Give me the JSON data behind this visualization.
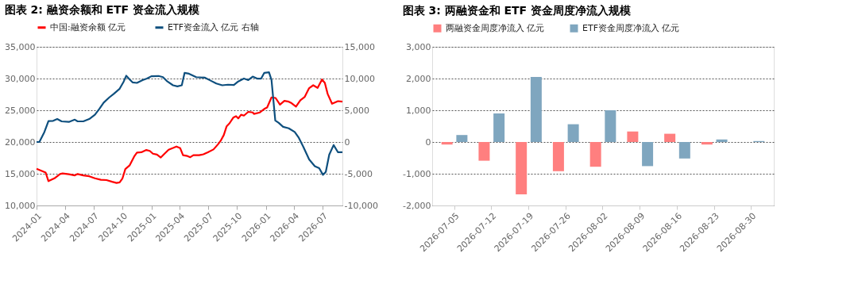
{
  "chart_data": [
    {
      "type": "line",
      "title": "图表 2: 融资余额和 ETF 资金流入规模",
      "legend": "top",
      "grid": "y",
      "line_style": "solid",
      "marker": "none",
      "xlim": [
        "2024-01-01",
        "2026-09-02"
      ],
      "xticks": [
        "2024-01",
        "2024-04",
        "2024-07",
        "2024-10",
        "2025-01",
        "2025-04",
        "2025-07",
        "2025-10",
        "2026-01",
        "2026-04",
        "2026-07"
      ],
      "ylim": [
        10000,
        35000
      ],
      "yticks": [
        {
          "value": 10000,
          "label": "10,000"
        },
        {
          "value": 15000,
          "label": "15,000"
        },
        {
          "value": 20000,
          "label": "20,000"
        },
        {
          "value": 25000,
          "label": "25,000"
        },
        {
          "value": 30000,
          "label": "30,000"
        },
        {
          "value": 35000,
          "label": "35,000"
        }
      ],
      "y2lim": [
        -10000,
        15000
      ],
      "y2ticks": [
        {
          "value": -10000,
          "label": "-10,000"
        },
        {
          "value": -5000,
          "label": "-5,000"
        },
        {
          "value": 0,
          "label": "0"
        },
        {
          "value": 5000,
          "label": "5,000"
        },
        {
          "value": 10000,
          "label": "10,000"
        },
        {
          "value": 15000,
          "label": "15,000"
        }
      ],
      "series": [
        {
          "name": "中国:融资余额 亿元",
          "color": "#ff0000",
          "x": [
            "2024-01-01",
            "2024-01-30",
            "2024-02-08",
            "2024-02-27",
            "2024-03-16",
            "2024-03-24",
            "2024-04-13",
            "2024-05-02",
            "2024-05-11",
            "2024-05-29",
            "2024-06-17",
            "2024-07-05",
            "2024-07-24",
            "2024-08-11",
            "2024-08-29",
            "2024-09-12",
            "2024-09-22",
            "2024-10-01",
            "2024-10-10",
            "2024-10-24",
            "2024-11-07",
            "2024-11-16",
            "2024-11-30",
            "2024-12-16",
            "2024-12-27",
            "2025-01-06",
            "2025-01-19",
            "2025-01-31",
            "2025-02-12",
            "2025-02-25",
            "2025-03-11",
            "2025-03-22",
            "2025-04-03",
            "2025-04-12",
            "2025-04-26",
            "2025-05-05",
            "2025-05-15",
            "2025-06-02",
            "2025-06-16",
            "2025-06-30",
            "2025-07-18",
            "2025-08-01",
            "2025-08-10",
            "2025-08-20",
            "2025-08-29",
            "2025-09-07",
            "2025-09-19",
            "2025-09-28",
            "2025-10-05",
            "2025-10-14",
            "2025-10-23",
            "2025-11-06",
            "2025-11-20",
            "2025-11-24",
            "2025-12-13",
            "2025-12-27",
            "2026-01-05",
            "2026-01-19",
            "2026-02-01",
            "2026-02-15",
            "2026-03-01",
            "2026-03-15",
            "2026-03-24",
            "2026-04-07",
            "2026-04-21",
            "2026-05-05",
            "2026-05-19",
            "2026-06-01",
            "2026-06-15",
            "2026-06-29",
            "2026-07-08",
            "2026-07-17",
            "2026-07-31",
            "2026-08-19",
            "2026-09-02"
          ],
          "values": [
            15780,
            15190,
            13830,
            14280,
            14960,
            15050,
            14920,
            14740,
            14960,
            14740,
            14600,
            14280,
            14050,
            14000,
            13730,
            13550,
            13640,
            14280,
            15740,
            16330,
            17700,
            18330,
            18380,
            18740,
            18600,
            18150,
            18010,
            17560,
            18150,
            18790,
            19060,
            19290,
            19020,
            17920,
            17790,
            17600,
            17920,
            17920,
            18060,
            18380,
            18830,
            19610,
            20200,
            21110,
            22480,
            22940,
            23840,
            24070,
            23710,
            24300,
            24160,
            24750,
            24660,
            24430,
            24660,
            25210,
            25440,
            27030,
            26940,
            25890,
            26480,
            26350,
            26120,
            25570,
            26570,
            27120,
            28490,
            28940,
            28530,
            29850,
            29310,
            27580,
            26030,
            26440,
            26350
          ]
        },
        {
          "name": "ETF资金流入 亿元 右轴",
          "color": "#0e4f7e",
          "axis": "y2",
          "x": [
            "2024-01-01",
            "2024-01-10",
            "2024-01-26",
            "2024-02-08",
            "2024-02-23",
            "2024-03-07",
            "2024-03-21",
            "2024-04-13",
            "2024-05-02",
            "2024-05-11",
            "2024-05-29",
            "2024-06-17",
            "2024-07-05",
            "2024-07-19",
            "2024-08-02",
            "2024-08-20",
            "2024-09-03",
            "2024-09-22",
            "2024-10-05",
            "2024-10-13",
            "2024-10-24",
            "2024-11-02",
            "2024-11-16",
            "2024-12-04",
            "2024-12-18",
            "2025-01-01",
            "2025-01-24",
            "2025-02-07",
            "2025-02-21",
            "2025-03-11",
            "2025-03-25",
            "2025-04-08",
            "2025-04-17",
            "2025-05-01",
            "2025-05-24",
            "2025-06-21",
            "2025-07-09",
            "2025-07-27",
            "2025-08-15",
            "2025-09-02",
            "2025-09-21",
            "2025-10-05",
            "2025-10-23",
            "2025-11-06",
            "2025-11-20",
            "2025-12-04",
            "2025-12-17",
            "2025-12-27",
            "2026-01-11",
            "2026-01-19",
            "2026-01-31",
            "2026-02-11",
            "2026-02-25",
            "2026-03-15",
            "2026-04-03",
            "2026-04-16",
            "2026-04-30",
            "2026-05-19",
            "2026-06-06",
            "2026-06-20",
            "2026-07-02",
            "2026-07-11",
            "2026-07-22",
            "2026-08-05",
            "2026-08-19",
            "2026-09-02"
          ],
          "values": [
            0,
            0,
            1570,
            3300,
            3340,
            3620,
            3250,
            3160,
            3520,
            3250,
            3250,
            3620,
            4300,
            5210,
            6210,
            7030,
            7580,
            8400,
            9540,
            10450,
            9850,
            9400,
            9310,
            9760,
            9990,
            10360,
            10400,
            10220,
            9540,
            8940,
            8760,
            8940,
            10900,
            10760,
            10220,
            10130,
            9670,
            9220,
            8940,
            9030,
            8990,
            9540,
            9990,
            9760,
            10310,
            9990,
            9990,
            10900,
            10990,
            9760,
            3390,
            3020,
            2390,
            2160,
            1570,
            660,
            -710,
            -2760,
            -3810,
            -4130,
            -5170,
            -4720,
            -1990,
            -480,
            -1620,
            -1620
          ]
        }
      ]
    },
    {
      "type": "bar",
      "title": "图表 3: 两融资金和 ETF 资金周度净流入规模",
      "legend": "top",
      "grid": "y",
      "categories": [
        "2026-07-05",
        "2026-07-12",
        "2026-07-19",
        "2026-07-26",
        "2026-08-02",
        "2026-08-09",
        "2026-08-16",
        "2026-08-23",
        "2026-08-30"
      ],
      "ylim": [
        -2000,
        3000
      ],
      "yticks": [
        {
          "value": -2000,
          "label": "-2,000"
        },
        {
          "value": -1000,
          "label": "-1,000"
        },
        0,
        {
          "value": 1000,
          "label": "1,000"
        },
        {
          "value": 2000,
          "label": "2,000"
        },
        {
          "value": 3000,
          "label": "3,000"
        }
      ],
      "series": [
        {
          "name": "两融资金周度净流入 亿元",
          "color": "#ff7f7f",
          "values": [
            -80,
            -590,
            -1650,
            -920,
            -780,
            330,
            260,
            -80,
            null
          ]
        },
        {
          "name": "ETF资金周度净流入 亿元",
          "color": "#7fa6bf",
          "values": [
            220,
            900,
            2050,
            560,
            1000,
            -760,
            -520,
            80,
            30
          ]
        }
      ]
    }
  ]
}
